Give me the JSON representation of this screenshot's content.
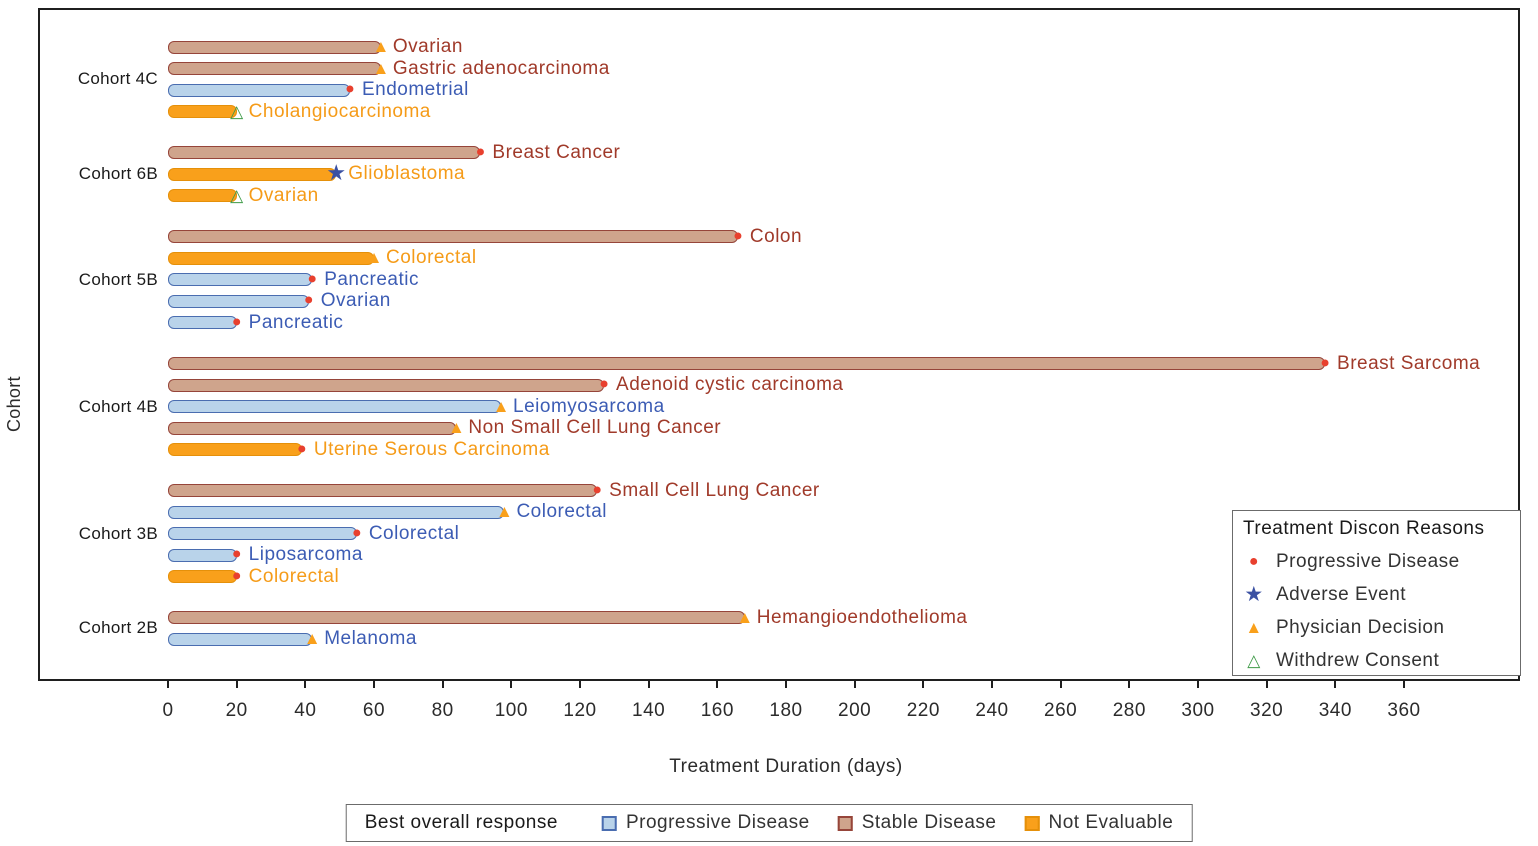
{
  "chart_data": {
    "type": "bar",
    "variant": "swimmer-plot",
    "title": "",
    "xlabel": "Treatment Duration (days)",
    "ylabel": "Cohort",
    "xlim": [
      0,
      380
    ],
    "xticks": [
      0,
      20,
      40,
      60,
      80,
      100,
      120,
      140,
      160,
      180,
      200,
      220,
      240,
      260,
      280,
      300,
      320,
      340,
      360
    ],
    "grid": false,
    "discon_legend": {
      "title": "Treatment Discon Reasons",
      "items": [
        {
          "label": "Progressive Disease",
          "symbol": "filled-circle-icon",
          "glyph": "●",
          "color": "#e8402e",
          "size": 16
        },
        {
          "label": "Adverse Event",
          "symbol": "filled-star-icon",
          "glyph": "★",
          "color": "#3b51a3",
          "size": 21
        },
        {
          "label": "Physician Decision",
          "symbol": "filled-triangle-icon",
          "glyph": "▲",
          "color": "#f9a01b",
          "size": 17
        },
        {
          "label": "Withdrew Consent",
          "symbol": "open-triangle-icon",
          "glyph": "△",
          "color": "#3f9b48",
          "size": 17
        }
      ]
    },
    "response_legend": {
      "title": "Best overall response",
      "items": [
        {
          "label": "Progressive Disease",
          "fill": "#b9d3ea",
          "border": "#4a6db0"
        },
        {
          "label": "Stable Disease",
          "fill": "#cfa48c",
          "border": "#96453a"
        },
        {
          "label": "Not Evaluable",
          "fill": "#f9a01b",
          "border": "#e5900a"
        }
      ]
    },
    "responses": {
      "Progressive Disease": {
        "fill": "#b9d3ea",
        "border": "#4a6db0",
        "text": "#3c5cb4"
      },
      "Stable Disease": {
        "fill": "#cfa48c",
        "border": "#96453a",
        "text": "#a03a2a"
      },
      "Not Evaluable": {
        "fill": "#f9a01b",
        "border": "#e5900a",
        "text": "#f59b18"
      }
    },
    "discon_symbols": {
      "Progressive Disease": {
        "glyph": "●",
        "color": "#e8402e",
        "size": 16
      },
      "Adverse Event": {
        "glyph": "★",
        "color": "#3b51a3",
        "size": 22
      },
      "Physician Decision": {
        "glyph": "▲",
        "color": "#f9a01b",
        "size": 17
      },
      "Withdrew Consent": {
        "glyph": "△",
        "color": "#3f9b48",
        "size": 17
      }
    },
    "cohorts": [
      {
        "name": "Cohort 4C",
        "bars": [
          {
            "label": "Ovarian",
            "days": 62,
            "response": "Stable Disease",
            "discon": "Physician Decision"
          },
          {
            "label": "Gastric adenocarcinoma",
            "days": 62,
            "response": "Stable Disease",
            "discon": "Physician Decision"
          },
          {
            "label": "Endometrial",
            "days": 53,
            "response": "Progressive Disease",
            "discon": "Progressive Disease"
          },
          {
            "label": "Cholangiocarcinoma",
            "days": 20,
            "response": "Not Evaluable",
            "discon": "Withdrew Consent"
          }
        ]
      },
      {
        "name": "Cohort 6B",
        "bars": [
          {
            "label": "Breast Cancer",
            "days": 91,
            "response": "Stable Disease",
            "discon": "Progressive Disease"
          },
          {
            "label": "Glioblastoma",
            "days": 49,
            "response": "Not Evaluable",
            "discon": "Adverse Event"
          },
          {
            "label": "Ovarian",
            "days": 20,
            "response": "Not Evaluable",
            "discon": "Withdrew Consent"
          }
        ]
      },
      {
        "name": "Cohort 5B",
        "bars": [
          {
            "label": "Colon",
            "days": 166,
            "response": "Stable Disease",
            "discon": "Progressive Disease"
          },
          {
            "label": "Colorectal",
            "days": 60,
            "response": "Not Evaluable",
            "discon": "Physician Decision"
          },
          {
            "label": "Pancreatic",
            "days": 42,
            "response": "Progressive Disease",
            "discon": "Progressive Disease"
          },
          {
            "label": "Ovarian",
            "days": 41,
            "response": "Progressive Disease",
            "discon": "Progressive Disease"
          },
          {
            "label": "Pancreatic",
            "days": 20,
            "response": "Progressive Disease",
            "discon": "Progressive Disease"
          }
        ]
      },
      {
        "name": "Cohort 4B",
        "bars": [
          {
            "label": "Breast Sarcoma",
            "days": 337,
            "response": "Stable Disease",
            "discon": "Progressive Disease"
          },
          {
            "label": "Adenoid cystic carcinoma",
            "days": 127,
            "response": "Stable Disease",
            "discon": "Progressive Disease"
          },
          {
            "label": "Leiomyosarcoma",
            "days": 97,
            "response": "Progressive Disease",
            "discon": "Physician Decision"
          },
          {
            "label": "Non Small Cell Lung Cancer",
            "days": 84,
            "response": "Stable Disease",
            "discon": "Physician Decision"
          },
          {
            "label": "Uterine Serous Carcinoma",
            "days": 39,
            "response": "Not Evaluable",
            "discon": "Progressive Disease"
          }
        ]
      },
      {
        "name": "Cohort 3B",
        "bars": [
          {
            "label": "Small Cell Lung Cancer",
            "days": 125,
            "response": "Stable Disease",
            "discon": "Progressive Disease"
          },
          {
            "label": "Colorectal",
            "days": 98,
            "response": "Progressive Disease",
            "discon": "Physician Decision"
          },
          {
            "label": "Colorectal",
            "days": 55,
            "response": "Progressive Disease",
            "discon": "Progressive Disease"
          },
          {
            "label": "Liposarcoma",
            "days": 20,
            "response": "Progressive Disease",
            "discon": "Progressive Disease"
          },
          {
            "label": "Colorectal",
            "days": 20,
            "response": "Not Evaluable",
            "discon": "Progressive Disease"
          }
        ]
      },
      {
        "name": "Cohort 2B",
        "bars": [
          {
            "label": "Hemangioendothelioma",
            "days": 168,
            "response": "Stable Disease",
            "discon": "Physician Decision"
          },
          {
            "label": "Melanoma",
            "days": 42,
            "response": "Progressive Disease",
            "discon": "Physician Decision"
          }
        ]
      }
    ]
  }
}
